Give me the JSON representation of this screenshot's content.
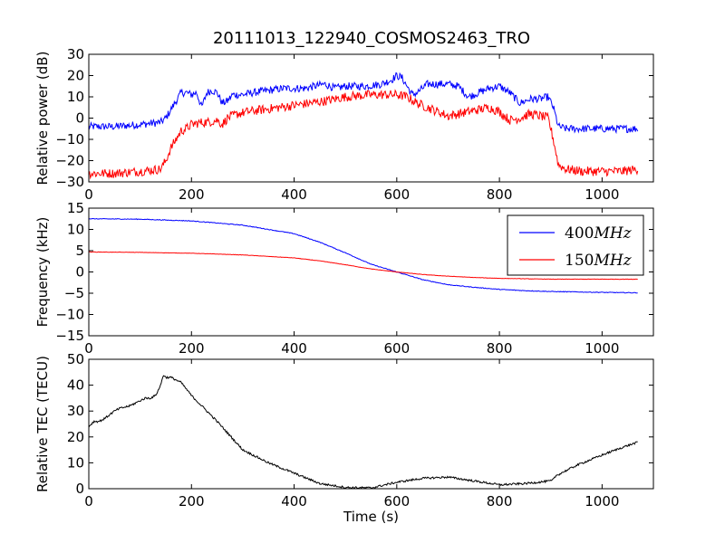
{
  "title": "20111013_122940_COSMOS2463_TRO",
  "chart_data": [
    {
      "type": "line",
      "title": "20111013_122940_COSMOS2463_TRO",
      "xlabel": "",
      "ylabel": "Relative power (dB)",
      "xlim": [
        0,
        1100
      ],
      "ylim": [
        -30,
        30
      ],
      "xticks": [
        "0",
        "200",
        "400",
        "600",
        "800",
        "1000"
      ],
      "yticks": [
        "−30",
        "−20",
        "−10",
        "0",
        "10",
        "20",
        "30"
      ],
      "grid": false,
      "series": [
        {
          "color": "#0000ff",
          "noise": 1.8,
          "x": [
            0,
            50,
            100,
            140,
            150,
            160,
            170,
            180,
            190,
            200,
            210,
            220,
            230,
            240,
            250,
            260,
            270,
            280,
            300,
            320,
            350,
            380,
            400,
            420,
            440,
            460,
            480,
            500,
            540,
            570,
            590,
            600,
            610,
            620,
            630,
            640,
            660,
            680,
            700,
            720,
            740,
            760,
            780,
            800,
            820,
            840,
            860,
            880,
            895,
            905,
            915,
            930,
            960,
            1000,
            1040,
            1070
          ],
          "y": [
            -4,
            -4,
            -3,
            -2,
            0,
            4,
            8,
            12,
            12,
            11,
            12,
            5,
            12,
            13,
            12,
            7,
            8,
            11,
            11,
            12,
            13,
            14,
            14,
            14,
            15,
            16,
            14,
            15,
            15,
            16,
            18,
            20,
            19,
            15,
            11,
            12,
            16,
            16,
            16,
            15,
            10,
            12,
            14,
            15,
            12,
            7,
            9,
            9,
            10,
            5,
            -4,
            -5,
            -5,
            -5,
            -5,
            -5
          ]
        },
        {
          "color": "#ff0000",
          "noise": 2.2,
          "x": [
            0,
            50,
            100,
            140,
            150,
            160,
            165,
            170,
            180,
            190,
            200,
            220,
            230,
            250,
            260,
            270,
            290,
            310,
            340,
            370,
            400,
            430,
            460,
            480,
            500,
            550,
            600,
            620,
            640,
            660,
            680,
            700,
            720,
            740,
            760,
            780,
            800,
            820,
            840,
            860,
            880,
            895,
            905,
            915,
            930,
            960,
            1000,
            1040,
            1070
          ],
          "y": [
            -26,
            -26,
            -25,
            -24,
            -20,
            -14,
            -12,
            -10,
            -6,
            -5,
            -3,
            -2,
            -2,
            -1,
            -3,
            0,
            2,
            3,
            4,
            5,
            6,
            7,
            8,
            9,
            10,
            11,
            11,
            10,
            7,
            5,
            3,
            1,
            2,
            3,
            4,
            5,
            3,
            -1,
            0,
            2,
            1,
            0,
            -10,
            -22,
            -24,
            -25,
            -25,
            -25,
            -24
          ]
        }
      ]
    },
    {
      "type": "line",
      "title": "",
      "xlabel": "",
      "ylabel": "Frequency (kHz)",
      "xlim": [
        0,
        1100
      ],
      "ylim": [
        -15,
        15
      ],
      "xticks": [
        "0",
        "200",
        "400",
        "600",
        "800",
        "1000"
      ],
      "yticks": [
        "−15",
        "−10",
        "−5",
        "0",
        "5",
        "10",
        "15"
      ],
      "grid": false,
      "legend": "top-right",
      "series": [
        {
          "name": "400MHz",
          "color": "#0000ff",
          "noise": 0.08,
          "x": [
            0,
            100,
            200,
            300,
            400,
            450,
            500,
            550,
            600,
            650,
            700,
            750,
            800,
            850,
            900,
            1000,
            1070
          ],
          "y": [
            12.5,
            12.4,
            12,
            11,
            9,
            7,
            4.5,
            1.8,
            0,
            -1.8,
            -3,
            -3.6,
            -4.1,
            -4.4,
            -4.6,
            -4.8,
            -4.9
          ]
        },
        {
          "name": "150MHz",
          "color": "#ff0000",
          "noise": 0.04,
          "x": [
            0,
            100,
            200,
            300,
            400,
            450,
            500,
            550,
            600,
            650,
            700,
            750,
            800,
            850,
            900,
            1000,
            1070
          ],
          "y": [
            4.7,
            4.6,
            4.4,
            4.0,
            3.3,
            2.6,
            1.7,
            0.7,
            0,
            -0.6,
            -1.0,
            -1.3,
            -1.5,
            -1.6,
            -1.7,
            -1.7,
            -1.7
          ]
        }
      ]
    },
    {
      "type": "line",
      "title": "",
      "xlabel": "Time (s)",
      "ylabel": "Relative TEC (TECU)",
      "xlim": [
        0,
        1100
      ],
      "ylim": [
        0,
        50
      ],
      "xticks": [
        "0",
        "200",
        "400",
        "600",
        "800",
        "1000"
      ],
      "yticks": [
        "0",
        "10",
        "20",
        "30",
        "40",
        "50"
      ],
      "grid": false,
      "series": [
        {
          "color": "#000000",
          "noise": 0.4,
          "x": [
            0,
            10,
            20,
            30,
            50,
            60,
            80,
            100,
            110,
            120,
            130,
            140,
            145,
            150,
            160,
            180,
            200,
            250,
            300,
            350,
            400,
            450,
            500,
            550,
            600,
            650,
            700,
            750,
            800,
            850,
            900,
            905,
            910,
            920,
            950,
            1000,
            1040,
            1070
          ],
          "y": [
            24,
            26,
            26,
            27,
            30,
            31,
            32,
            34,
            35,
            35,
            36,
            40,
            44,
            43,
            43,
            41,
            36,
            26,
            15,
            10,
            6,
            2,
            0.5,
            0.3,
            2.5,
            4,
            4.5,
            3,
            1.5,
            2,
            3,
            3.5,
            5,
            6,
            9,
            13,
            16,
            18
          ]
        }
      ]
    }
  ]
}
